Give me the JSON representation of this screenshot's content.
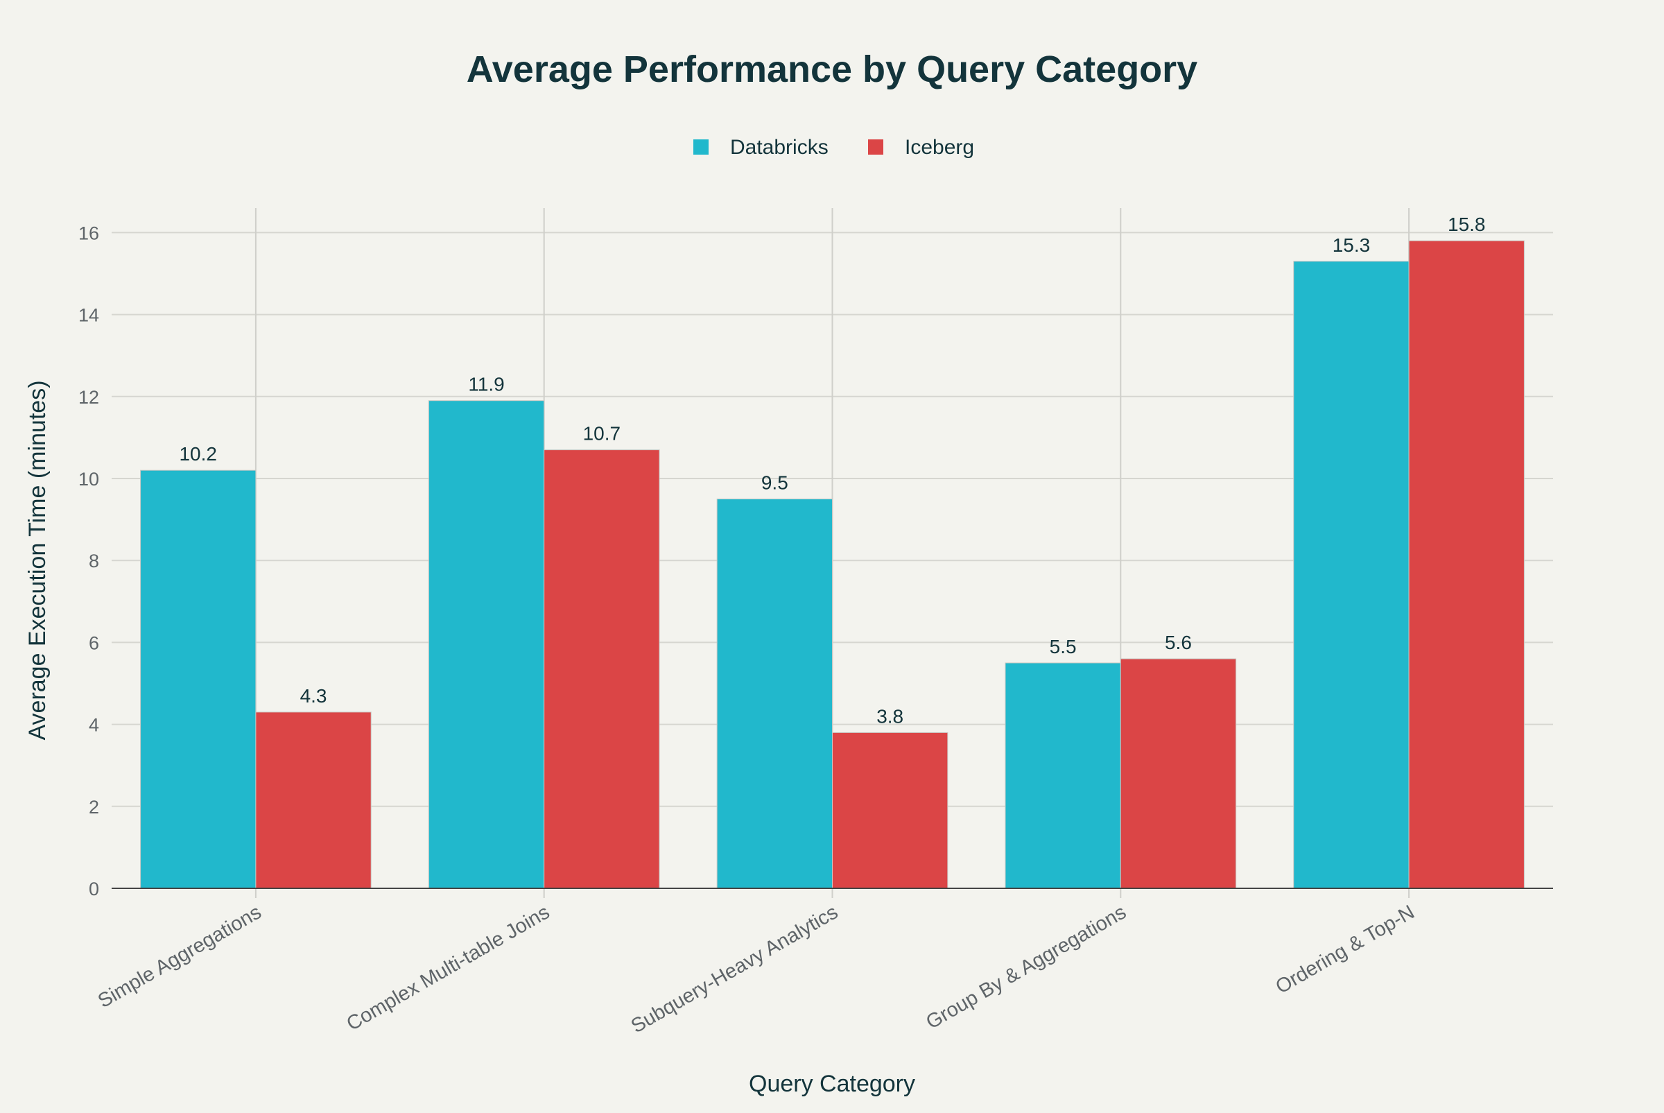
{
  "chart_data": {
    "type": "bar",
    "title": "Average Performance by Query Category",
    "xlabel": "Query Category",
    "ylabel": "Average Execution Time (minutes)",
    "categories": [
      "Simple Aggregations",
      "Complex Multi-table Joins",
      "Subquery-Heavy Analytics",
      "Group By & Aggregations",
      "Ordering & Top-N"
    ],
    "series": [
      {
        "name": "Databricks",
        "color": "#21B8CC",
        "values": [
          10.2,
          11.9,
          9.5,
          5.5,
          15.3
        ]
      },
      {
        "name": "Iceberg",
        "color": "#DB4546",
        "values": [
          4.3,
          10.7,
          3.8,
          5.6,
          15.8
        ]
      }
    ],
    "ylim": [
      0,
      16.6
    ],
    "yticks": [
      0,
      2,
      4,
      6,
      8,
      10,
      12,
      14,
      16
    ],
    "grid": true,
    "legend": "top-center",
    "data_labels": true
  }
}
